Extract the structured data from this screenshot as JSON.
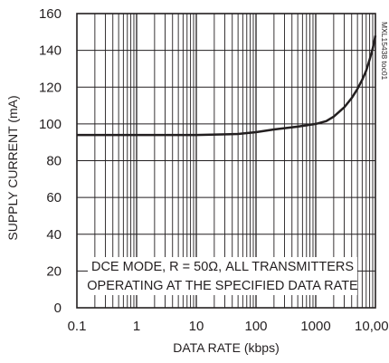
{
  "chart_data": {
    "type": "line",
    "xscale": "log",
    "xlim": [
      0.1,
      10000
    ],
    "ylim": [
      0,
      160
    ],
    "xlabel": "DATA RATE (kbps)",
    "ylabel": "SUPPLY CURRENT (mA)",
    "xticks": [
      {
        "v": 0.1,
        "label": "0.1"
      },
      {
        "v": 1,
        "label": "1"
      },
      {
        "v": 10,
        "label": "10"
      },
      {
        "v": 100,
        "label": "100"
      },
      {
        "v": 1000,
        "label": "1000"
      },
      {
        "v": 10000,
        "label": "10,000"
      }
    ],
    "yticks": [
      {
        "v": 0,
        "label": "0"
      },
      {
        "v": 20,
        "label": "20"
      },
      {
        "v": 40,
        "label": "40"
      },
      {
        "v": 60,
        "label": "60"
      },
      {
        "v": 80,
        "label": "80"
      },
      {
        "v": 100,
        "label": "100"
      },
      {
        "v": 120,
        "label": "120"
      },
      {
        "v": 140,
        "label": "140"
      },
      {
        "v": 160,
        "label": "160"
      }
    ],
    "grid": true,
    "annotation": [
      "DCE MODE, R = 50Ω, ALL TRANSMITTERS",
      "OPERATING AT THE SPECIFIED DATA RATE"
    ],
    "figure_code": "MXL15438 toc01",
    "series": [
      {
        "x": [
          0.1,
          1,
          10,
          50,
          100,
          200,
          500,
          1000,
          1500,
          2000,
          3000,
          4000,
          5000,
          6000,
          7000,
          8000,
          9000,
          10000
        ],
        "y": [
          94,
          94,
          94,
          94.5,
          95.5,
          97,
          98.5,
          100,
          101.5,
          104,
          109,
          114,
          119,
          124,
          129,
          135,
          141,
          148
        ]
      }
    ]
  }
}
